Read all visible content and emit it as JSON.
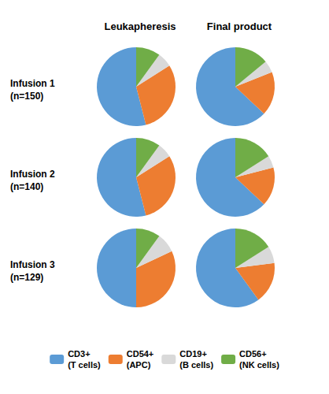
{
  "chart_data": [
    {
      "type": "pie",
      "title": "Leukapheresis",
      "ylabel": "Infusion 1\n(n=150)",
      "categories": [
        "CD3+\n(T cells)",
        "CD54+\n(APC)",
        "CD19+\n(B cells)",
        "CD56+\n(NK cells)"
      ],
      "values": [
        54,
        30,
        6,
        10
      ],
      "colors": [
        "#5b9bd5",
        "#ed7d31",
        "#d9d9d9",
        "#70ad47"
      ],
      "legend": "bottom"
    },
    {
      "type": "pie",
      "title": "Final product",
      "categories": [
        "CD3+\n(T cells)",
        "CD54+\n(APC)",
        "CD19+\n(B cells)",
        "CD56+\n(NK cells)"
      ],
      "values": [
        63,
        18,
        5,
        14
      ],
      "colors": [
        "#5b9bd5",
        "#ed7d31",
        "#d9d9d9",
        "#70ad47"
      ],
      "legend": "bottom"
    },
    {
      "type": "pie",
      "ylabel": "Infusion 2\n(n=140)",
      "categories": [
        "CD3+\n(T cells)",
        "CD54+\n(APC)",
        "CD19+\n(B cells)",
        "CD56+\n(NK cells)"
      ],
      "values": [
        54,
        30,
        6,
        10
      ],
      "colors": [
        "#5b9bd5",
        "#ed7d31",
        "#d9d9d9",
        "#70ad47"
      ],
      "legend": "bottom"
    },
    {
      "type": "pie",
      "categories": [
        "CD3+\n(T cells)",
        "CD54+\n(APC)",
        "CD19+\n(B cells)",
        "CD56+\n(NK cells)"
      ],
      "values": [
        63,
        16,
        5,
        16
      ],
      "colors": [
        "#5b9bd5",
        "#ed7d31",
        "#d9d9d9",
        "#70ad47"
      ],
      "legend": "bottom"
    },
    {
      "type": "pie",
      "ylabel": "Infusion 3\n(n=129)",
      "categories": [
        "CD3+\n(T cells)",
        "CD54+\n(APC)",
        "CD19+\n(B cells)",
        "CD56+\n(NK cells)"
      ],
      "values": [
        50,
        32,
        8,
        10
      ],
      "colors": [
        "#5b9bd5",
        "#ed7d31",
        "#d9d9d9",
        "#70ad47"
      ],
      "legend": "bottom"
    },
    {
      "type": "pie",
      "categories": [
        "CD3+\n(T cells)",
        "CD54+\n(APC)",
        "CD19+\n(B cells)",
        "CD56+\n(NK cells)"
      ],
      "values": [
        60,
        17,
        7,
        16
      ],
      "colors": [
        "#5b9bd5",
        "#ed7d31",
        "#d9d9d9",
        "#70ad47"
      ],
      "legend": "bottom"
    }
  ]
}
